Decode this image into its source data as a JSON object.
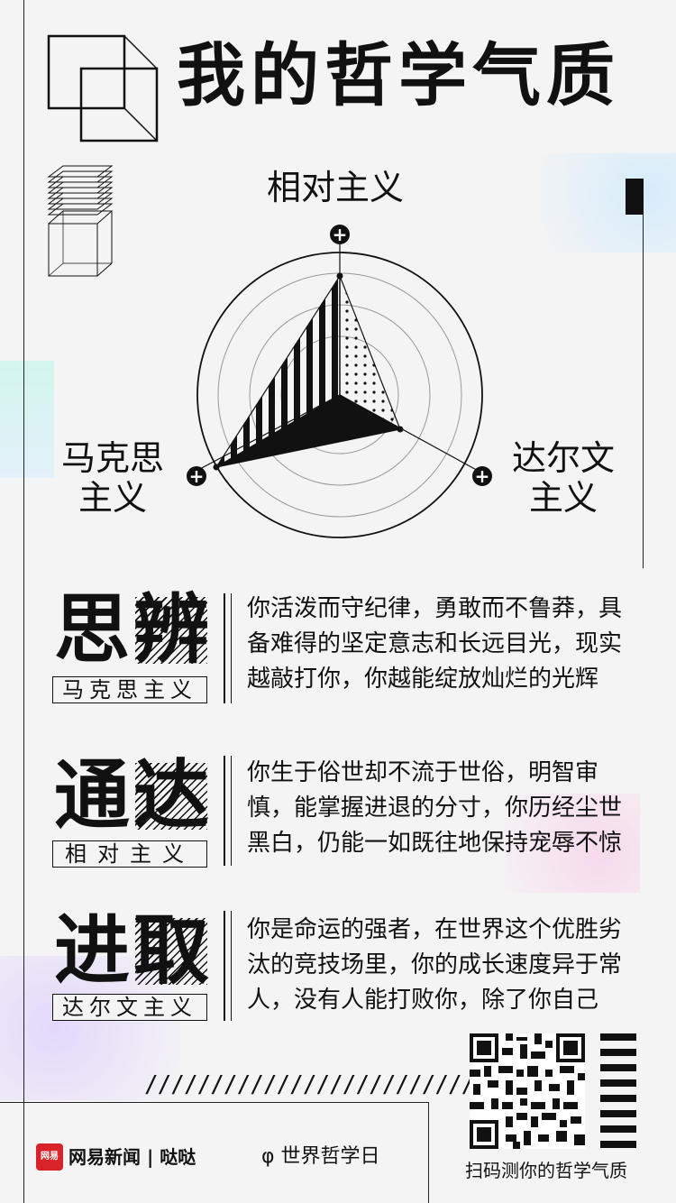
{
  "title": "我的哲学气质",
  "radar": {
    "axes": [
      {
        "label": "相对主义"
      },
      {
        "label_line1": "达尔文",
        "label_line2": "主义"
      },
      {
        "label_line1": "马克思",
        "label_line2": "主义"
      }
    ],
    "plus_symbol": "+"
  },
  "traits": [
    {
      "word": "思辨",
      "tag": "马克思主义",
      "lines": [
        "你活泼而守纪律，勇敢而不鲁莽，具",
        "备难得的坚定意志和长远目光，现实",
        "越敲打你，你越能绽放灿烂的光辉"
      ]
    },
    {
      "word": "通达",
      "tag": "相对主义",
      "lines": [
        "你生于俗世却不流于世俗，明智审",
        "慎，能掌握进退的分寸，你历经尘世",
        "黑白，仍能一如既往地保持宠辱不惊"
      ]
    },
    {
      "word": "进取",
      "tag": "达尔文主义",
      "lines": [
        "你是命运的强者，在世界这个优胜劣",
        "汰的竞技场里，你的成长速度异于常",
        "人，没有人能打败你，除了你自己"
      ]
    }
  ],
  "footer": {
    "slashes": "////////////////////////////",
    "logo_text": "网易",
    "brand": "网易新闻 | 哒哒",
    "day_icon": "φ",
    "day": "世界哲学日",
    "scan_text": "扫码测你的哲学气质"
  },
  "icons": [
    "cube-outline-icon",
    "stacked-cube-icon",
    "qr-code-icon",
    "hexagram-bars-icon",
    "plus-icon"
  ]
}
